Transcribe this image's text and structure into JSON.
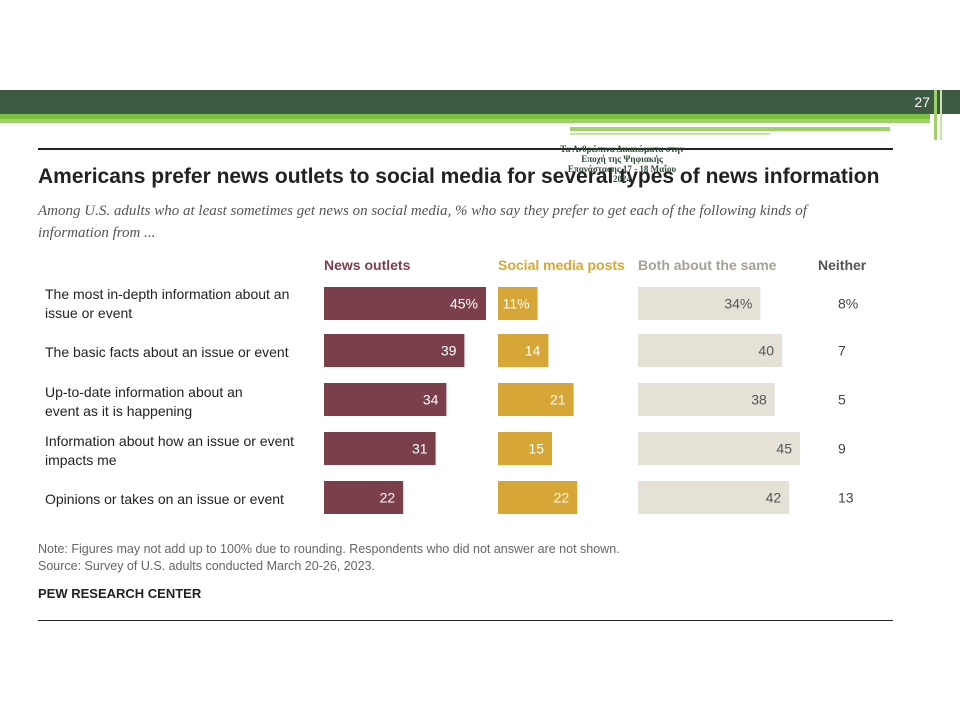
{
  "slide_number": "27",
  "overlay_text": "Τα Ανθρώπινα Δικαιώματα στην Εποχή της Ψηφιακής Επανάστασης 17 - 18 Μαΐου 2024",
  "colors": {
    "news_outlets": "#7b3f4b",
    "social_media": "#d6a737",
    "both": "#e5e1d6",
    "header_dark": "#3d5a43",
    "header_green": "#7bbf3e",
    "both_header": "#a6a290"
  },
  "chart_data": {
    "type": "bar",
    "title": "Americans prefer news outlets to social media for several types of news information",
    "subtitle": "Among U.S. adults who at least sometimes get news on social media, % who say they prefer to get each of the following kinds of information from ...",
    "categories": [
      "The most in-depth information about an issue or event",
      "The basic facts about an issue or event",
      "Up-to-date information about an event as it is happening",
      "Information about how an issue or event impacts me",
      "Opinions or takes on an issue or event"
    ],
    "series": [
      {
        "name": "News outlets",
        "values": [
          45,
          39,
          34,
          31,
          22
        ],
        "labels": [
          "45%",
          "39",
          "34",
          "31",
          "22"
        ]
      },
      {
        "name": "Social media posts",
        "values": [
          11,
          14,
          21,
          15,
          22
        ],
        "labels": [
          "11%",
          "14",
          "21",
          "15",
          "22"
        ]
      },
      {
        "name": "Both about the same",
        "values": [
          34,
          40,
          38,
          45,
          42
        ],
        "labels": [
          "34%",
          "40",
          "38",
          "45",
          "42"
        ]
      },
      {
        "name": "Neither",
        "values": [
          8,
          7,
          5,
          9,
          13
        ],
        "labels": [
          "8%",
          "7",
          "5",
          "9",
          "13"
        ]
      }
    ],
    "note": "Note: Figures may not add up to 100% due to rounding. Respondents who did not answer are not shown.",
    "source": "Source: Survey of U.S. adults conducted March 20-26, 2023.",
    "org": "PEW RESEARCH CENTER"
  }
}
